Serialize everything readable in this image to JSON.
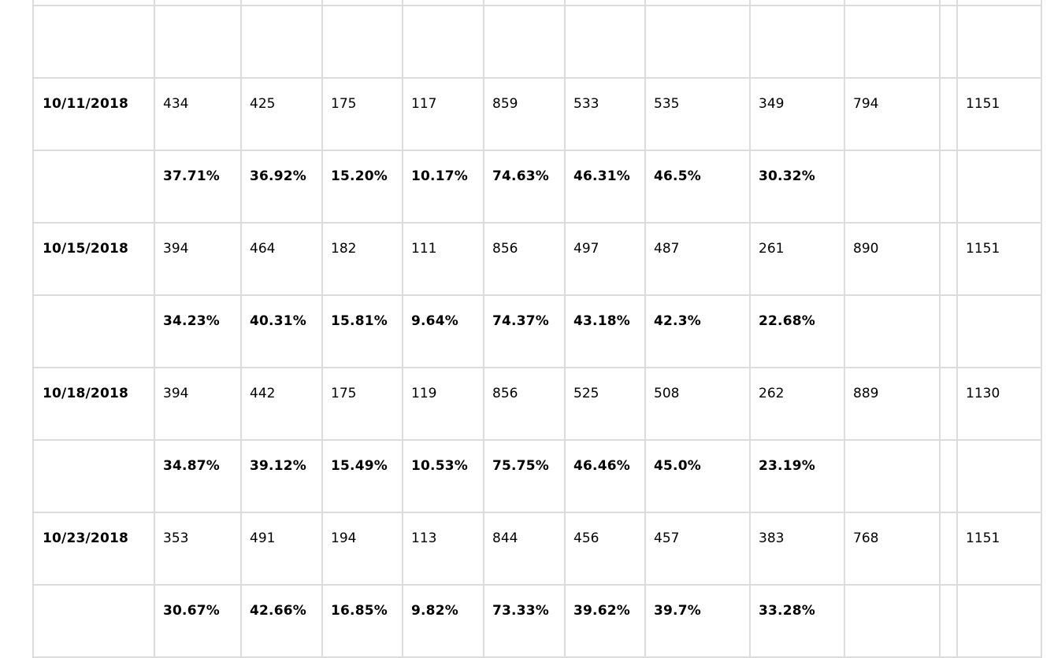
{
  "table": {
    "rows": [
      {
        "date": "",
        "counts": [
          "",
          "",
          "",
          "",
          "",
          "",
          "",
          "",
          "",
          "",
          ""
        ],
        "percents": [
          "",
          "",
          "",
          "",
          "",
          "",
          "",
          ""
        ]
      },
      {
        "date": "10/11/2018",
        "counts": [
          "434",
          "425",
          "175",
          "117",
          "859",
          "533",
          "535",
          "349",
          "794",
          "",
          "1151"
        ],
        "percents": [
          "37.71%",
          "36.92%",
          "15.20%",
          "10.17%",
          "74.63%",
          "46.31%",
          "46.5%",
          "30.32%"
        ]
      },
      {
        "date": "10/15/2018",
        "counts": [
          "394",
          "464",
          "182",
          "111",
          "856",
          "497",
          "487",
          "261",
          "890",
          "",
          "1151"
        ],
        "percents": [
          "34.23%",
          "40.31%",
          "15.81%",
          "9.64%",
          "74.37%",
          "43.18%",
          "42.3%",
          "22.68%"
        ]
      },
      {
        "date": "10/18/2018",
        "counts": [
          "394",
          "442",
          "175",
          "119",
          "856",
          "525",
          "508",
          "262",
          "889",
          "",
          "1130"
        ],
        "percents": [
          "34.87%",
          "39.12%",
          "15.49%",
          "10.53%",
          "75.75%",
          "46.46%",
          "45.0%",
          "23.19%"
        ]
      },
      {
        "date": "10/23/2018",
        "counts": [
          "353",
          "491",
          "194",
          "113",
          "844",
          "456",
          "457",
          "383",
          "768",
          "",
          "1151"
        ],
        "percents": [
          "30.67%",
          "42.66%",
          "16.85%",
          "9.82%",
          "73.33%",
          "39.62%",
          "39.7%",
          "33.28%"
        ]
      }
    ]
  }
}
